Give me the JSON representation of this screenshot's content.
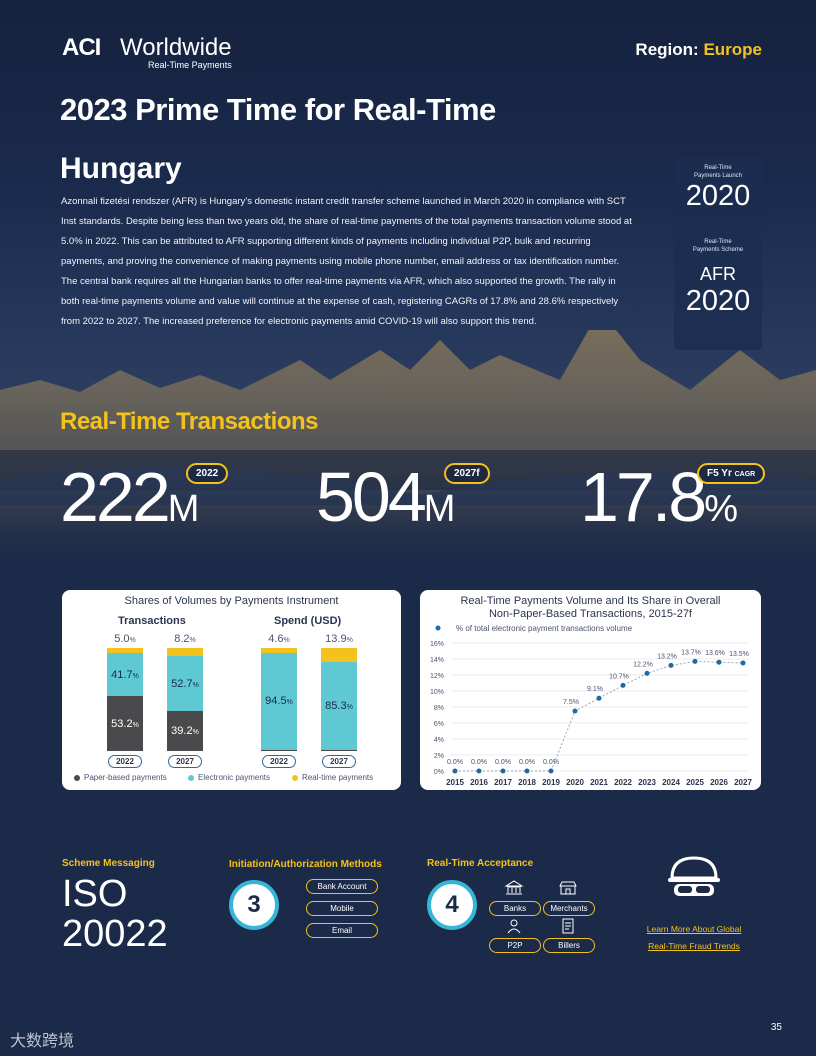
{
  "header": {
    "logo_mark": "ACI",
    "logo_word": "Worldwide",
    "logo_sub": "Real-Time Payments",
    "region_label": "Region:",
    "region_value": "Europe",
    "title": "2023 Prime Time for Real-Time",
    "country": "Hungary"
  },
  "body": "Azonnali fizetési rendszer (AFR) is Hungary’s domestic instant credit transfer scheme launched in March 2020 in compliance with SCT Inst standards. Despite being less than two years old, the share of real-time payments of the total payments transaction volume stood at 5.0% in 2022. This can be attributed to AFR supporting different kinds of payments including individual P2P, bulk and recurring payments, and proving the convenience of making payments using mobile phone number, email address or tax identification number. The central bank requires all the Hungarian banks to offer real-time payments via AFR, which also supported the growth. The rally in both real-time payments volume and value will continue at the expense of cash, registering CAGRs of 17.8% and 28.6% respectively from 2022 to 2027. The increased preference for electronic payments amid COVID-19 will also support this trend.",
  "cards": {
    "launch_label_1": "Real-Time",
    "launch_label_2": "Payments Launch",
    "launch_year": "2020",
    "scheme_label_1": "Real-Time",
    "scheme_label_2": "Payments Scheme",
    "scheme_name": "AFR",
    "scheme_year": "2020"
  },
  "transactions": {
    "title": "Real-Time Transactions",
    "stat1": {
      "value": "222",
      "unit": "M",
      "badge": "2022"
    },
    "stat2": {
      "value": "504",
      "unit": "M",
      "badge": "2027f"
    },
    "stat3": {
      "value": "17.8",
      "unit": "%",
      "badge": "F5 Yr",
      "badge_sub": "CAGR"
    }
  },
  "shares_chart": {
    "title": "Shares of Volumes by Payments Instrument",
    "group1": "Transactions",
    "group2": "Spend (USD)",
    "legend": [
      "Paper-based payments",
      "Electronic payments",
      "Real-time payments"
    ],
    "colors": {
      "paper": "#4a4a4c",
      "electronic": "#5ec9d3",
      "realtime": "#f4c21c"
    },
    "bars": [
      {
        "year": "2022",
        "paper": "53.2",
        "electronic": "41.7",
        "realtime": "5.0"
      },
      {
        "year": "2027",
        "paper": "39.2",
        "electronic": "52.7",
        "realtime": "8.2"
      },
      {
        "year": "2022",
        "paper": "0.8",
        "electronic": "94.5",
        "realtime": "4.6"
      },
      {
        "year": "2027",
        "paper": "0.7",
        "electronic": "85.3",
        "realtime": "13.9"
      }
    ],
    "pct": "%"
  },
  "chart_data": {
    "type": "line",
    "title": "Real-Time Payments Volume and Its Share in Overall Non-Paper-Based Transactions, 2015-27f",
    "title_line1": "Real-Time Payments Volume and Its Share in Overall",
    "title_line2": "Non-Paper-Based Transactions, 2015-27f",
    "x": [
      "2015",
      "2016",
      "2017",
      "2018",
      "2019",
      "2020",
      "2021",
      "2022",
      "2023",
      "2024",
      "2025",
      "2026",
      "2027"
    ],
    "series": [
      {
        "name": "% of total electronic payment transactions volume",
        "values": [
          0.0,
          0.0,
          0.0,
          0.0,
          0.0,
          7.5,
          9.1,
          10.7,
          12.2,
          13.2,
          13.7,
          13.6,
          13.5
        ],
        "labels": [
          "0.0%",
          "0.0%",
          "0.0%",
          "0.0%",
          "0.0%",
          "7.5%",
          "9.1%",
          "10.7%",
          "12.2%",
          "13.2%",
          "13.7%",
          "13.6%",
          "13.5%"
        ]
      }
    ],
    "yticks": [
      "0%",
      "2%",
      "4%",
      "6%",
      "8%",
      "10%",
      "12%",
      "14%",
      "16%"
    ],
    "ylim": [
      0,
      16
    ],
    "grid": true,
    "color": "#1f6aa5"
  },
  "bottom": {
    "scheme_messaging_label": "Scheme Messaging",
    "iso_line1": "ISO",
    "iso_line2": "20022",
    "init_label": "Initiation/Authorization Methods",
    "init_count": "3",
    "init_methods": [
      "Bank Account",
      "Mobile",
      "Email"
    ],
    "acceptance_label": "Real-Time Acceptance",
    "acceptance_count": "4",
    "acceptance": [
      "Banks",
      "Merchants",
      "P2P",
      "Billers"
    ],
    "link_line1": "Learn More About Global",
    "link_line2": "Real-Time Fraud Trends"
  },
  "page_number": "35",
  "watermark": "大数跨境"
}
